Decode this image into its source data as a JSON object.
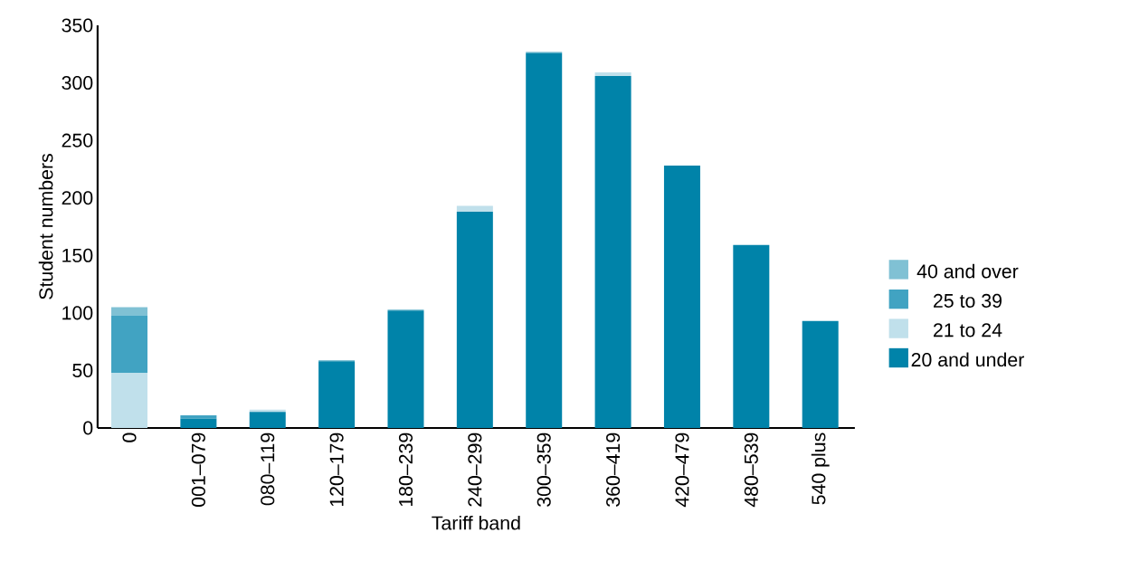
{
  "chart_data": {
    "type": "bar",
    "stacked": true,
    "xlabel": "Tariff band",
    "ylabel": "Student numbers",
    "categories": [
      "0",
      "001–079",
      "080–119",
      "120–179",
      "180–239",
      "240–299",
      "300–359",
      "360–419",
      "420–479",
      "480–539",
      "540 plus"
    ],
    "series": [
      {
        "name": "20 and under",
        "color": "#0083a9",
        "values": [
          0,
          8,
          14,
          58,
          102,
          188,
          326,
          306,
          228,
          159,
          93
        ]
      },
      {
        "name": "21 to 24",
        "color": "#c0e0eb",
        "values": [
          48,
          0,
          2,
          0,
          0,
          5,
          0,
          3,
          0,
          0,
          0
        ]
      },
      {
        "name": "25 to 39",
        "color": "#41a3c2",
        "values": [
          50,
          3,
          0,
          0,
          0,
          0,
          0,
          0,
          0,
          0,
          0
        ]
      },
      {
        "name": "40 and over",
        "color": "#80c1d4",
        "values": [
          7,
          0,
          0,
          1,
          1,
          0,
          1,
          0,
          0,
          0,
          0
        ]
      }
    ],
    "ylim": [
      0,
      350
    ],
    "yticks": [
      0,
      50,
      100,
      150,
      200,
      250,
      300,
      350
    ],
    "legend": "right",
    "grid": false
  }
}
